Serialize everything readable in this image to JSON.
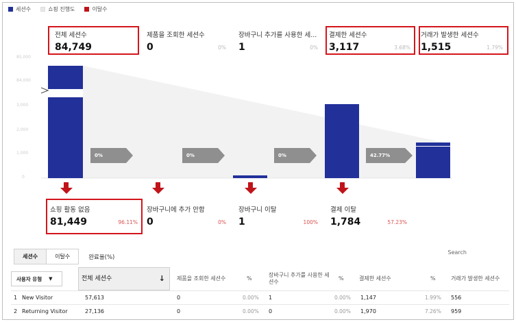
{
  "legend": {
    "items": [
      {
        "label": "세션수",
        "color": "#22309a"
      },
      {
        "label": "쇼핑 진행도",
        "color": "#e8e8e8"
      },
      {
        "label": "이탈수",
        "color": "#c0141a"
      }
    ]
  },
  "top_metrics": [
    {
      "label": "전체 세션수",
      "value": "84,749",
      "pct": ""
    },
    {
      "label": "제품을 조회한 세션수",
      "value": "0",
      "pct": "0%"
    },
    {
      "label": "장바구니 추가를 사용한 세...",
      "value": "1",
      "pct": "0%"
    },
    {
      "label": "결제한 세션수",
      "value": "3,117",
      "pct": "3.68%"
    },
    {
      "label": "거래가 발생한 세션수",
      "value": "1,515",
      "pct": "1.79%"
    }
  ],
  "y_ticks": [
    "85,000",
    "84,000",
    "3,000",
    "2,000",
    "1,000",
    "0"
  ],
  "transitions": [
    "0%",
    "0%",
    "0%",
    "42.77%"
  ],
  "chart_data": {
    "type": "bar",
    "categories": [
      "전체 세션수",
      "제품을 조회한 세션수",
      "장바구니 추가를 사용한 세...",
      "결제한 세션수",
      "거래가 발생한 세션수"
    ],
    "values": [
      84749,
      0,
      1,
      3117,
      1515
    ],
    "ylim": [
      0,
      85000
    ]
  },
  "drop_metrics": [
    {
      "label": "쇼핑 활동 없음",
      "value": "81,449",
      "pct": "96.11%"
    },
    {
      "label": "장바구니에 추가 안함",
      "value": "0",
      "pct": "0%"
    },
    {
      "label": "장바구니 이탈",
      "value": "1",
      "pct": "100%"
    },
    {
      "label": "결제 이탈",
      "value": "1,784",
      "pct": "57.23%"
    }
  ],
  "tabs": {
    "sessions": "세션수",
    "exits": "이탈수",
    "completion": "완료율(%)"
  },
  "search_label": "Search",
  "table": {
    "dimension_dropdown": "사용자 유형",
    "headers": [
      "전체 세션수",
      "제품을 조회한 세션수",
      "%",
      "장바구니 추가를 사용한 세션수",
      "%",
      "결제한 세션수",
      "%",
      "거래가 발생한 세션수"
    ],
    "rows": [
      {
        "index": "1",
        "name": "New Visitor",
        "total": "57,613",
        "viewed": "0",
        "viewed_pct": "0.00%",
        "cart": "1",
        "cart_pct": "0.00%",
        "checkout": "1,147",
        "checkout_pct": "1.99%",
        "trans": "556"
      },
      {
        "index": "2",
        "name": "Returning Visitor",
        "total": "27,136",
        "viewed": "0",
        "viewed_pct": "0.00%",
        "cart": "0",
        "cart_pct": "0.00%",
        "checkout": "1,970",
        "checkout_pct": "7.26%",
        "trans": "959"
      }
    ]
  }
}
